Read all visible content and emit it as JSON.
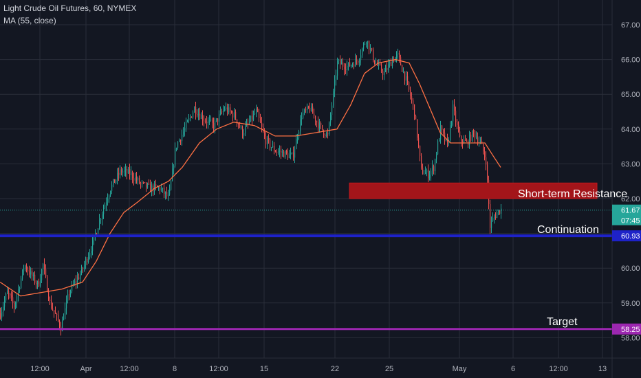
{
  "legend": {
    "title": "Light Crude Oil Futures, 60, NYMEX",
    "study": "MA (55, close)"
  },
  "colors": {
    "background": "#131722",
    "grid": "#2a2e39",
    "axis_text": "#b2b5be",
    "candle_up": "#26a69a",
    "candle_down": "#ef5350",
    "ma_line": "#ff7043",
    "resistance_fill": "#a3151a",
    "continuation_line": "#1e22c8",
    "target_line": "#9c27b0",
    "last_price_line": "#26a69a",
    "countdown_bg": "#26a69a"
  },
  "chart_data": {
    "type": "candlestick",
    "title": "Light Crude Oil Futures, 60, NYMEX",
    "indicator": "MA (55, close)",
    "x_tick_labels": [
      "12:00",
      "Apr",
      "12:00",
      "8",
      "12:00",
      "15",
      "22",
      "25",
      "May",
      "6",
      "12:00",
      "13"
    ],
    "y_tick_labels": [
      "58.00",
      "59.00",
      "60.00",
      "61.00",
      "62.00",
      "63.00",
      "64.00",
      "65.00",
      "66.00",
      "67.00"
    ],
    "ylim": [
      57.6,
      67.3
    ],
    "grid": true,
    "price_path": [
      [
        0,
        58.7
      ],
      [
        10,
        59.3
      ],
      [
        20,
        58.9
      ],
      [
        35,
        60.1
      ],
      [
        48,
        59.7
      ],
      [
        55,
        59.5
      ],
      [
        62,
        60.1
      ],
      [
        72,
        59.0
      ],
      [
        88,
        58.3
      ],
      [
        100,
        59.3
      ],
      [
        118,
        59.9
      ],
      [
        134,
        60.7
      ],
      [
        146,
        61.5
      ],
      [
        160,
        62.3
      ],
      [
        175,
        62.8
      ],
      [
        190,
        62.7
      ],
      [
        205,
        62.4
      ],
      [
        218,
        62.3
      ],
      [
        232,
        62.3
      ],
      [
        245,
        62.0
      ],
      [
        255,
        63.5
      ],
      [
        268,
        64.0
      ],
      [
        282,
        64.6
      ],
      [
        295,
        64.3
      ],
      [
        310,
        64.1
      ],
      [
        326,
        64.6
      ],
      [
        340,
        64.4
      ],
      [
        352,
        63.9
      ],
      [
        372,
        64.5
      ],
      [
        385,
        63.7
      ],
      [
        398,
        63.4
      ],
      [
        412,
        63.3
      ],
      [
        425,
        63.2
      ],
      [
        438,
        64.4
      ],
      [
        450,
        64.6
      ],
      [
        463,
        64.1
      ],
      [
        476,
        63.8
      ],
      [
        490,
        65.9
      ],
      [
        505,
        65.8
      ],
      [
        520,
        66.0
      ],
      [
        532,
        66.6
      ],
      [
        545,
        65.9
      ],
      [
        558,
        65.6
      ],
      [
        570,
        66.0
      ],
      [
        578,
        66.1
      ],
      [
        590,
        65.4
      ],
      [
        602,
        64.5
      ],
      [
        612,
        62.8
      ],
      [
        622,
        62.7
      ],
      [
        630,
        62.9
      ],
      [
        640,
        64.0
      ],
      [
        650,
        63.5
      ],
      [
        658,
        64.6
      ],
      [
        668,
        63.7
      ],
      [
        678,
        63.6
      ],
      [
        688,
        63.9
      ],
      [
        698,
        63.6
      ],
      [
        706,
        63.1
      ],
      [
        712,
        61.2
      ],
      [
        716,
        61.4
      ],
      [
        722,
        61.6
      ],
      [
        728,
        61.7
      ]
    ],
    "ma_path": [
      [
        0,
        59.6
      ],
      [
        30,
        59.2
      ],
      [
        60,
        59.3
      ],
      [
        90,
        59.4
      ],
      [
        120,
        59.6
      ],
      [
        140,
        60.2
      ],
      [
        160,
        61.0
      ],
      [
        180,
        61.6
      ],
      [
        200,
        61.9
      ],
      [
        225,
        62.3
      ],
      [
        245,
        62.5
      ],
      [
        265,
        62.9
      ],
      [
        290,
        63.6
      ],
      [
        315,
        64.0
      ],
      [
        340,
        64.2
      ],
      [
        370,
        64.1
      ],
      [
        400,
        63.8
      ],
      [
        430,
        63.8
      ],
      [
        460,
        63.9
      ],
      [
        490,
        64.0
      ],
      [
        510,
        64.7
      ],
      [
        530,
        65.6
      ],
      [
        550,
        65.9
      ],
      [
        575,
        66.0
      ],
      [
        595,
        65.9
      ],
      [
        610,
        65.3
      ],
      [
        625,
        64.6
      ],
      [
        640,
        63.9
      ],
      [
        655,
        63.6
      ],
      [
        670,
        63.6
      ],
      [
        690,
        63.6
      ],
      [
        705,
        63.6
      ],
      [
        718,
        63.2
      ],
      [
        728,
        62.9
      ]
    ],
    "last_price": {
      "value": 61.67,
      "label": "61.67",
      "countdown": "07:45"
    },
    "annotations": [
      {
        "id": "resistance",
        "text": "Short-term Resistance",
        "low": 62.0,
        "high": 62.45
      },
      {
        "id": "continuation",
        "text": "Continuation",
        "value": 60.93,
        "label": "60.93"
      },
      {
        "id": "target",
        "text": "Target",
        "value": 58.25,
        "label": "58.25"
      }
    ]
  }
}
